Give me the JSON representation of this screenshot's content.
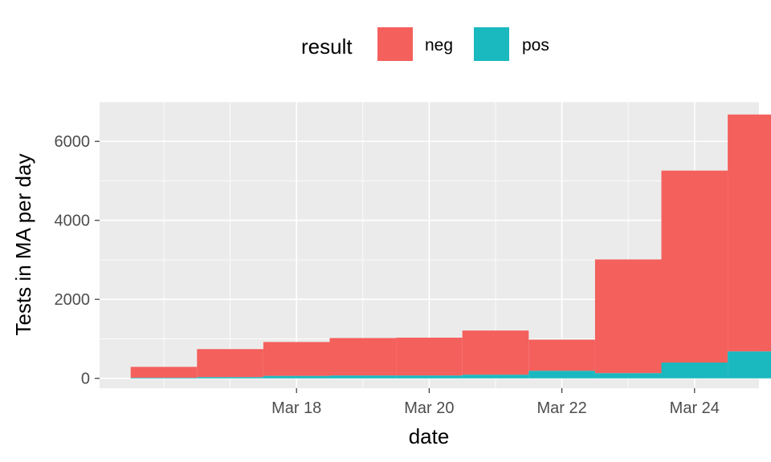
{
  "chart_data": {
    "type": "bar",
    "subtype": "stacked",
    "xlabel": "date",
    "ylabel": "Tests in MA per day",
    "x": [
      "2020-03-16",
      "2020-03-17",
      "2020-03-18",
      "2020-03-19",
      "2020-03-20",
      "2020-03-21",
      "2020-03-22",
      "2020-03-23",
      "2020-03-24",
      "2020-03-25"
    ],
    "series": [
      {
        "name": "pos",
        "color": "#1ab8bf",
        "values": [
          15,
          30,
          60,
          70,
          70,
          90,
          190,
          130,
          400,
          680
        ]
      },
      {
        "name": "neg",
        "color": "#f4605c",
        "values": [
          275,
          710,
          860,
          950,
          960,
          1120,
          790,
          2880,
          4860,
          6000
        ]
      }
    ],
    "x_ticks": [
      "Mar 18",
      "Mar 20",
      "Mar 22",
      "Mar 24"
    ],
    "y_ticks": [
      "0",
      "2000",
      "4000",
      "6000"
    ],
    "ylim": [
      -250,
      7000
    ],
    "legend": {
      "title": "result",
      "position": "top",
      "entries": [
        "neg",
        "pos"
      ]
    },
    "grid": true
  }
}
